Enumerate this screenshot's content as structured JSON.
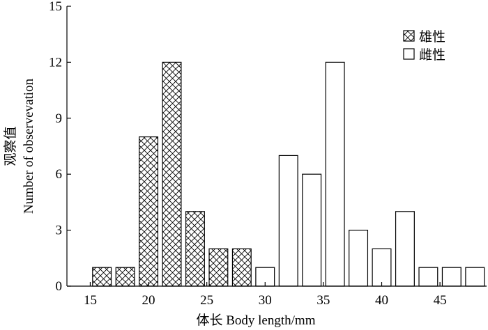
{
  "chart_data": {
    "type": "bar",
    "xlabel": "体长 Body length/mm",
    "ylabel_zh": "观察值",
    "ylabel_en": "Number of observevation",
    "xlim": [
      13,
      49
    ],
    "ylim": [
      0,
      15
    ],
    "xticks": [
      15,
      20,
      25,
      30,
      35,
      40,
      45
    ],
    "yticks": [
      0,
      3,
      6,
      9,
      12,
      15
    ],
    "bar_width": 1.6,
    "grid": false,
    "legend_position": "top-right",
    "series": [
      {
        "name": "雄性",
        "pattern": "crosshatch",
        "x": [
          16,
          18,
          20,
          22,
          24,
          26,
          28
        ],
        "values": [
          1,
          1,
          8,
          12,
          4,
          2,
          2
        ]
      },
      {
        "name": "雌性",
        "pattern": "empty",
        "x": [
          30,
          32,
          34,
          36,
          38,
          40,
          42,
          44,
          46,
          48
        ],
        "values": [
          1,
          7,
          6,
          12,
          3,
          2,
          4,
          1,
          1,
          1
        ]
      }
    ]
  }
}
